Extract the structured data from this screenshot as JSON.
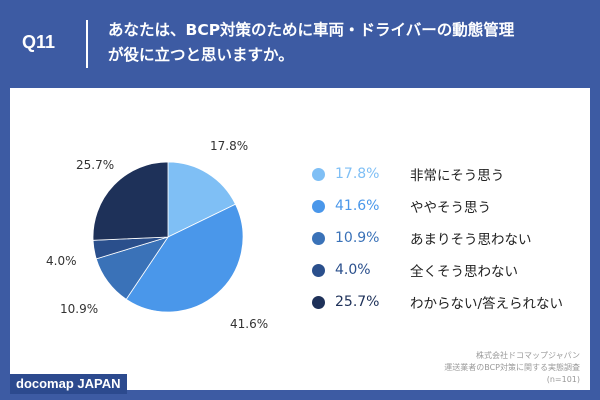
{
  "header": {
    "question_no": "Q11",
    "question_line1": "あなたは、BCP対策のために車両・ドライバーの動態管理",
    "question_line2": "が役に立つと思いますか。"
  },
  "chart_data": {
    "type": "pie",
    "categories": [
      "非常にそう思う",
      "ややそう思う",
      "あまりそう思わない",
      "全くそう思わない",
      "わからない/答えられない"
    ],
    "values": [
      17.8,
      41.6,
      10.9,
      4.0,
      25.7
    ],
    "value_labels": [
      "17.8%",
      "41.6%",
      "10.9%",
      "4.0%",
      "25.7%"
    ],
    "colors": [
      "#7fbff5",
      "#4a97ea",
      "#3a72b8",
      "#2a4f8c",
      "#1e3159"
    ],
    "start_angle_deg": 0,
    "direction": "clockwise",
    "legend_position": "right"
  },
  "source": {
    "line1": "株式会社ドコマップジャパン",
    "line2": "運送業者のBCP対策に関する実態調査",
    "line3": "(n=101)"
  },
  "brand": {
    "text": "docomap JAPAN"
  }
}
